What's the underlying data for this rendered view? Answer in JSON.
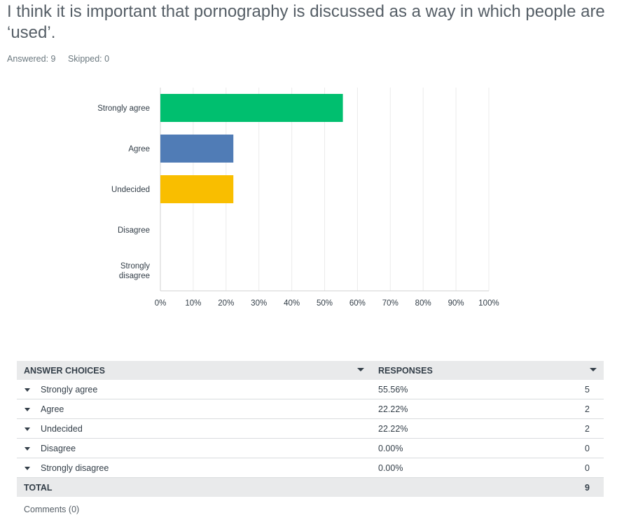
{
  "question": "I think it is important that pornography is discussed as a way in which people are ‘used’.",
  "stats": {
    "answered": "Answered: 9",
    "skipped": "Skipped: 0"
  },
  "chart_data": {
    "type": "bar",
    "orientation": "horizontal",
    "categories": [
      "Strongly agree",
      "Agree",
      "Undecided",
      "Disagree",
      "Strongly disagree"
    ],
    "category_lines": [
      [
        "Strongly agree"
      ],
      [
        "Agree"
      ],
      [
        "Undecided"
      ],
      [
        "Disagree"
      ],
      [
        "Strongly",
        "disagree"
      ]
    ],
    "values": [
      55.56,
      22.22,
      22.22,
      0,
      0
    ],
    "colors": [
      "#00bf6f",
      "#507cb6",
      "#f9be00",
      "#6bc8cd",
      "#ff8b4f"
    ],
    "xlim": [
      0,
      100
    ],
    "xticks": [
      0,
      10,
      20,
      30,
      40,
      50,
      60,
      70,
      80,
      90,
      100
    ],
    "xtick_labels": [
      "0%",
      "10%",
      "20%",
      "30%",
      "40%",
      "50%",
      "60%",
      "70%",
      "80%",
      "90%",
      "100%"
    ],
    "grid": true
  },
  "table": {
    "col_choices": "ANSWER CHOICES",
    "col_responses": "RESPONSES",
    "rows": [
      {
        "choice": "Strongly agree",
        "percent": "55.56%",
        "count": "5"
      },
      {
        "choice": "Agree",
        "percent": "22.22%",
        "count": "2"
      },
      {
        "choice": "Undecided",
        "percent": "22.22%",
        "count": "2"
      },
      {
        "choice": "Disagree",
        "percent": "0.00%",
        "count": "0"
      },
      {
        "choice": "Strongly disagree",
        "percent": "0.00%",
        "count": "0"
      }
    ],
    "total_label": "TOTAL",
    "total_count": "9"
  },
  "comments": "Comments (0)"
}
